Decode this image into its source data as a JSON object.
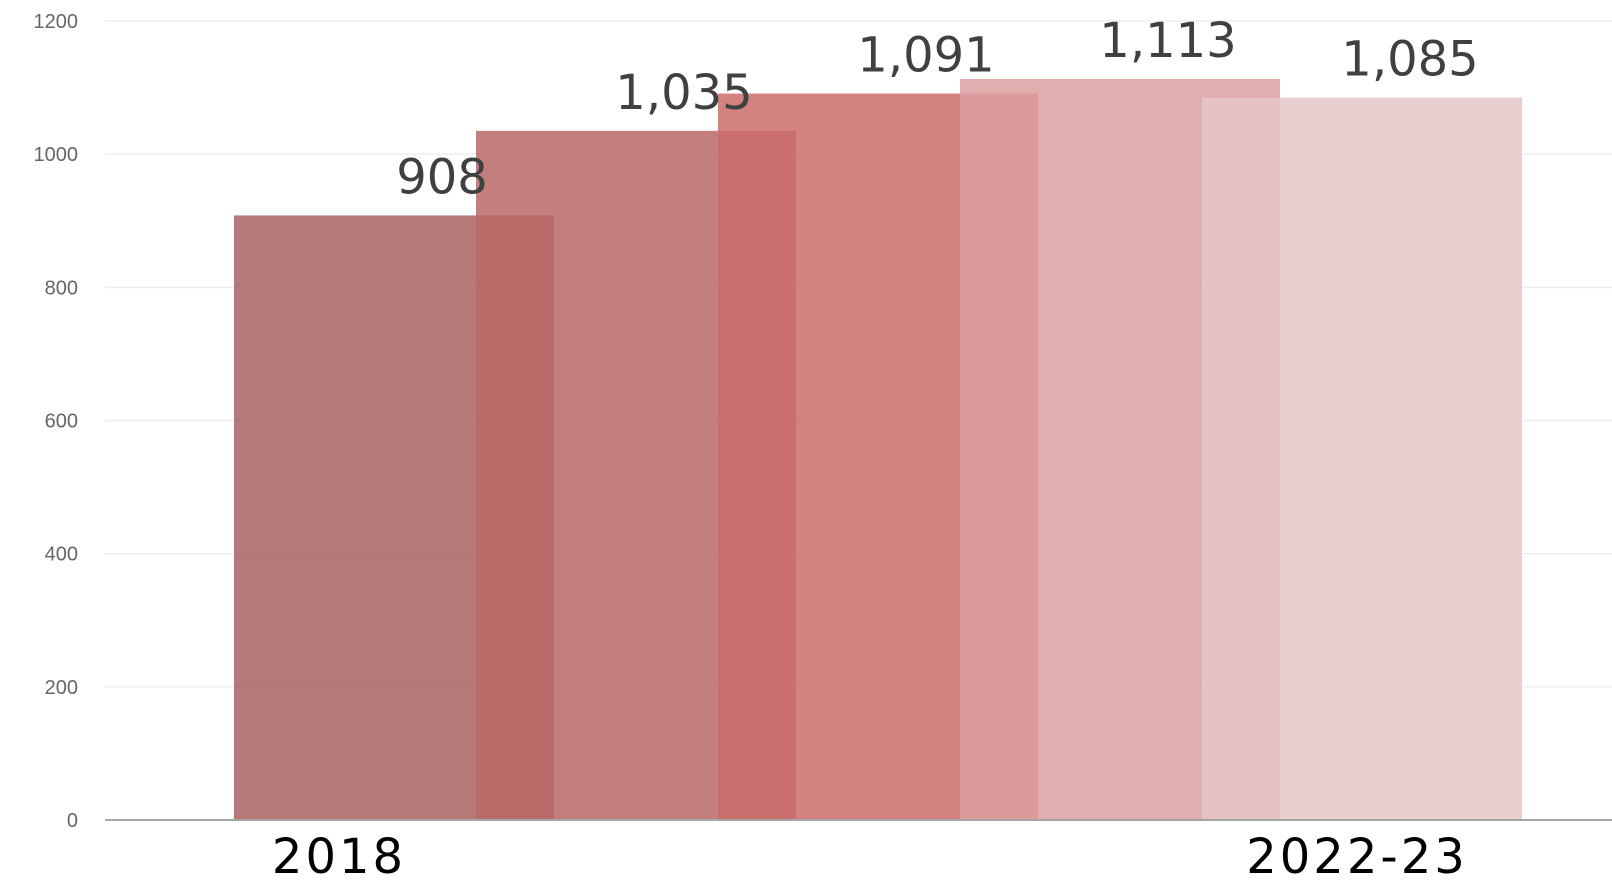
{
  "chart_data": {
    "type": "bar",
    "values": [
      908,
      1035,
      1091,
      1113,
      1085
    ],
    "value_labels": [
      "908",
      "1,035",
      "1,091",
      "1,113",
      "1,085"
    ],
    "category_labels": [
      {
        "index": 0,
        "text": "2018"
      },
      {
        "index": 4,
        "text": "2022-23"
      }
    ],
    "yticks": [
      0,
      200,
      400,
      600,
      800,
      1000,
      1200
    ],
    "ylim": [
      0,
      1200
    ],
    "grid": true,
    "legend": "none",
    "colors": [
      "#a8625f",
      "#b96866",
      "#cd6b6b",
      "#dca0a1",
      "#e5c5c8"
    ],
    "bar_opacity": 0.85
  }
}
